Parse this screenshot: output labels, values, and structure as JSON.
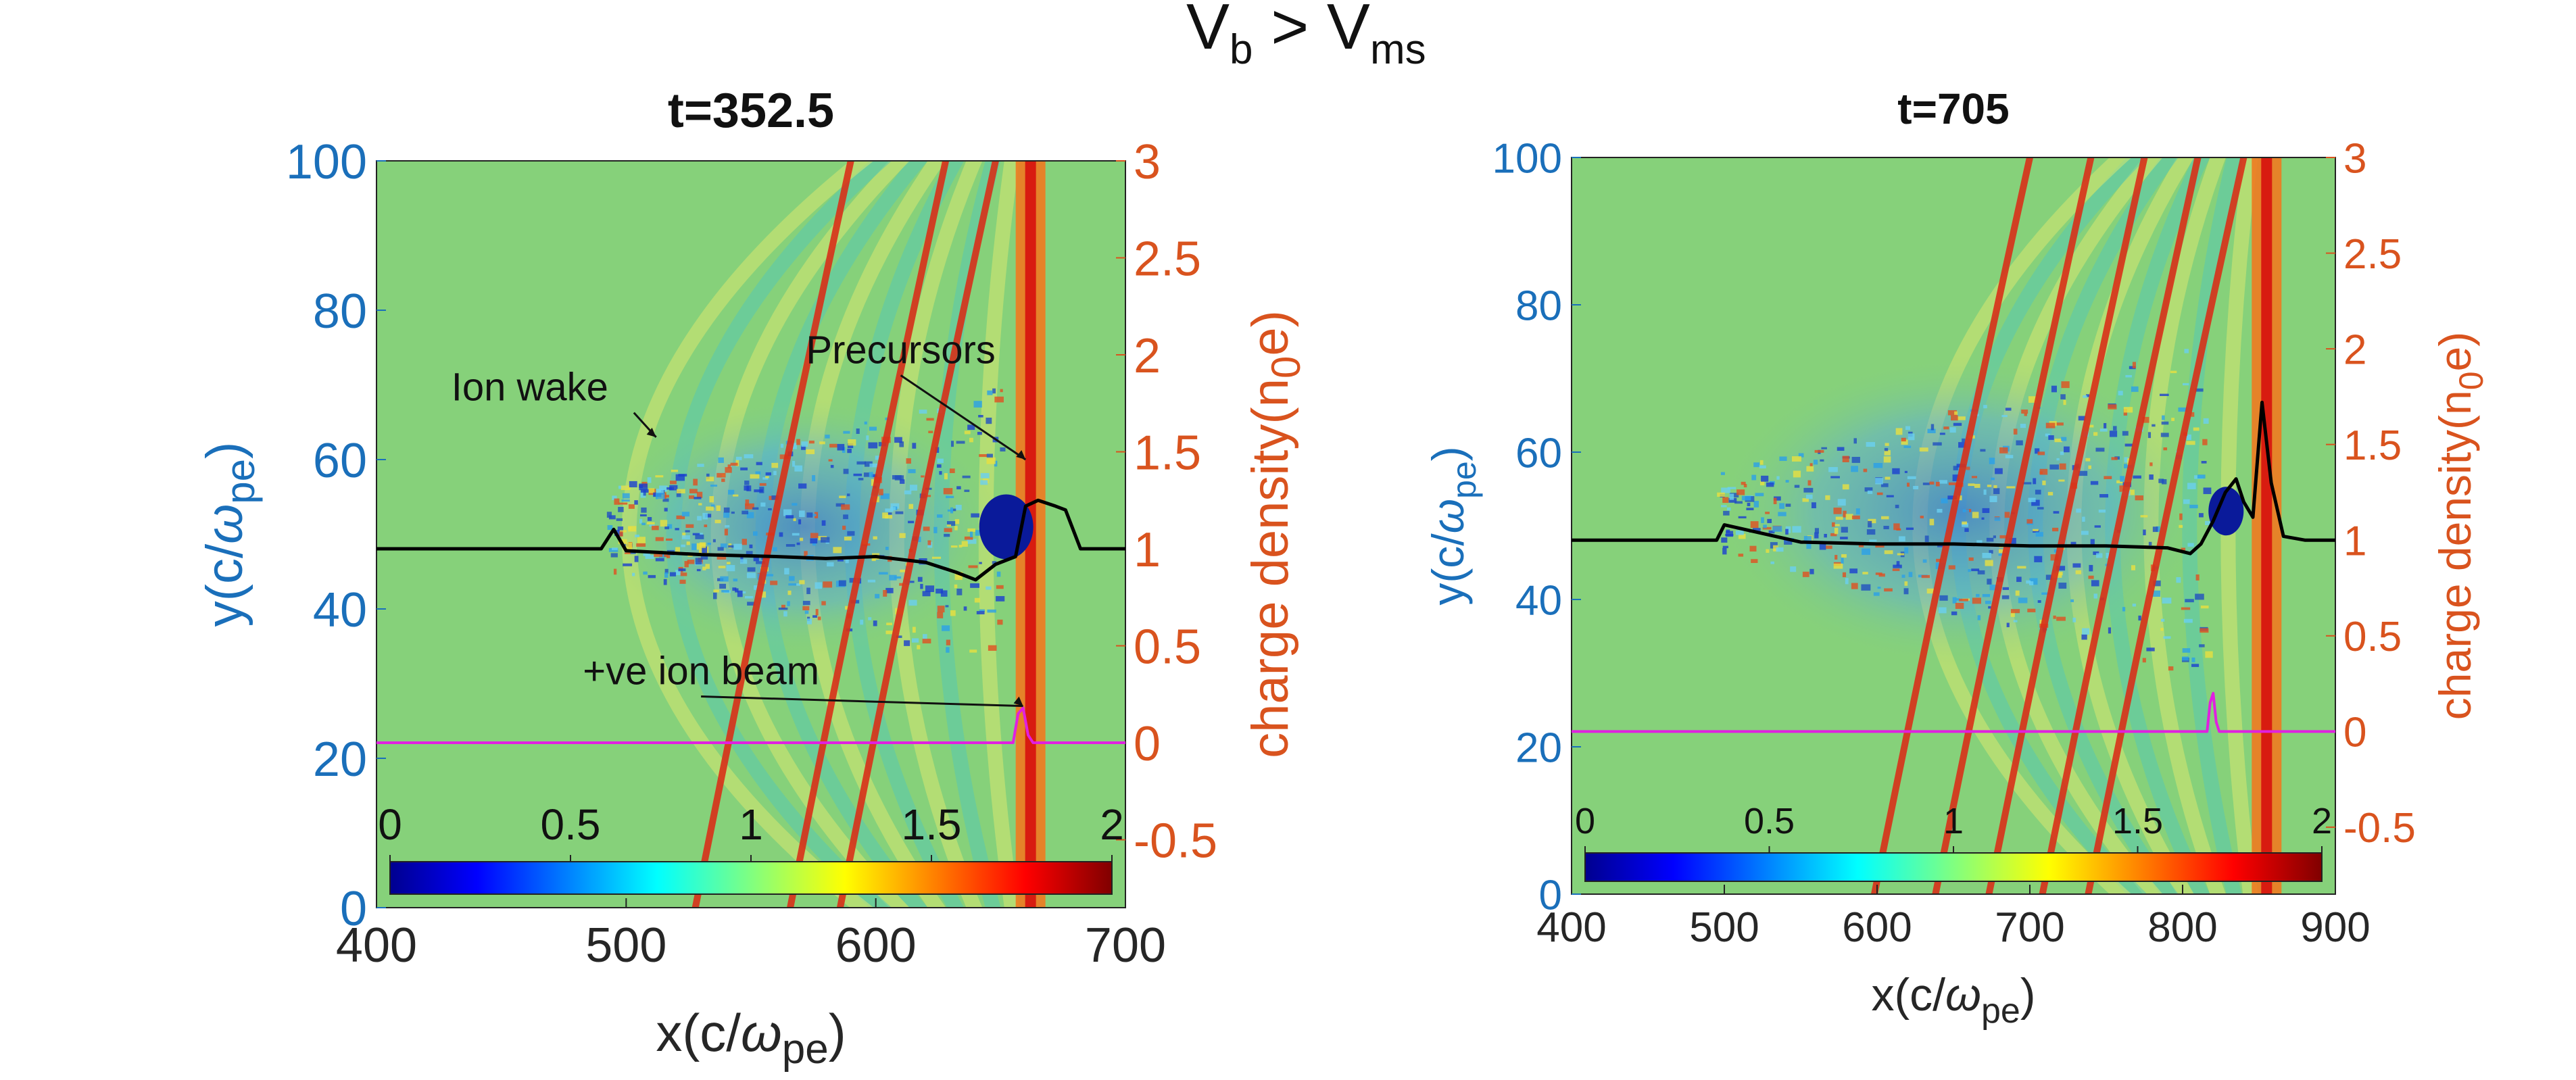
{
  "figure": {
    "suptitle_main": "V",
    "suptitle_sub1": "b",
    "suptitle_gt": " > V",
    "suptitle_sub2": "ms"
  },
  "colors": {
    "left_axis": "#1a6fba",
    "right_axis": "#d9531e",
    "profile_line": "#000000",
    "beam_line": "#e020e0",
    "background_field": "#86d17a"
  },
  "chart_data": [
    {
      "type": "heatmap",
      "title": "t=352.5",
      "xlabel": "x(c/ωpe)",
      "xlabel_parts": {
        "main": "x(c/",
        "omega": "ω",
        "sub": "pe",
        "close": ")"
      },
      "ylabel_left_parts": {
        "main": "y(c/",
        "omega": "ω",
        "sub": "pe",
        "close": ")"
      },
      "ylabel_right_parts": {
        "main": "charge density(n",
        "sub": "0",
        "close": "e)"
      },
      "xlim": [
        400,
        700
      ],
      "ylim_left": [
        0,
        100
      ],
      "ylim_right": [
        -0.85,
        3
      ],
      "xticks": [
        400,
        500,
        600,
        700
      ],
      "xtick_labels": [
        "400",
        "500",
        "600",
        "700"
      ],
      "yticks_left": [
        0,
        20,
        40,
        60,
        80,
        100
      ],
      "ytick_labels_left": [
        "0",
        "20",
        "40",
        "60",
        "80",
        "100"
      ],
      "yticks_right": [
        -0.5,
        0,
        0.5,
        1,
        1.5,
        2,
        2.5,
        3
      ],
      "ytick_labels_right": [
        "-0.5",
        "0",
        "0.5",
        "1",
        "1.5",
        "2",
        "2.5",
        "3"
      ],
      "colorbar": {
        "range": [
          0,
          2
        ],
        "ticks": [
          0,
          0.5,
          1,
          1.5,
          2
        ],
        "tick_labels": [
          "0",
          "0.5",
          "1",
          "1.5",
          "2"
        ],
        "colormap": "jet"
      },
      "shock_front_x": 662,
      "precursor_x": [
        590,
        628,
        648
      ],
      "annotations": [
        {
          "text": "Ion wake",
          "data_x": 512,
          "data_y": 63
        },
        {
          "text": "Precursors",
          "data_x": 660,
          "data_y": 60
        },
        {
          "text": "+ve ion beam",
          "data_x": 659,
          "data_y": 27
        }
      ],
      "series": [
        {
          "name": "charge density profile",
          "axis": "right",
          "x": [
            400,
            450,
            490,
            495,
            500,
            530,
            560,
            580,
            600,
            620,
            632,
            640,
            648,
            656,
            660,
            665,
            672,
            676,
            682,
            690,
            700
          ],
          "values": [
            1.0,
            1.0,
            1.0,
            1.1,
            0.99,
            0.97,
            0.96,
            0.95,
            0.96,
            0.93,
            0.88,
            0.84,
            0.92,
            0.96,
            1.22,
            1.25,
            1.22,
            1.2,
            1.0,
            1.0,
            1.0
          ]
        },
        {
          "name": "ion beam density",
          "axis": "right",
          "x": [
            400,
            655,
            657,
            659,
            661,
            663,
            700
          ],
          "values": [
            0,
            0,
            0.15,
            0.18,
            0.04,
            0,
            0
          ]
        }
      ]
    },
    {
      "type": "heatmap",
      "title": "t=705",
      "xlabel": "x(c/ωpe)",
      "xlabel_parts": {
        "main": "x(c/",
        "omega": "ω",
        "sub": "pe",
        "close": ")"
      },
      "ylabel_left_parts": {
        "main": "y(c/",
        "omega": "ω",
        "sub": "pe",
        "close": ")"
      },
      "ylabel_right_parts": {
        "main": "charge density(n",
        "sub": "0",
        "close": "e)"
      },
      "xlim": [
        400,
        900
      ],
      "ylim_left": [
        0,
        100
      ],
      "ylim_right": [
        -0.85,
        3
      ],
      "xticks": [
        400,
        500,
        600,
        700,
        800,
        900
      ],
      "xtick_labels": [
        "400",
        "500",
        "600",
        "700",
        "800",
        "900"
      ],
      "yticks_left": [
        0,
        20,
        40,
        60,
        80,
        100
      ],
      "ytick_labels_left": [
        "0",
        "20",
        "40",
        "60",
        "80",
        "100"
      ],
      "yticks_right": [
        -0.5,
        0,
        0.5,
        1,
        1.5,
        2,
        2.5,
        3
      ],
      "ytick_labels_right": [
        "-0.5",
        "0",
        "0.5",
        "1",
        "1.5",
        "2",
        "2.5",
        "3"
      ],
      "colorbar": {
        "range": [
          0,
          2
        ],
        "ticks": [
          0,
          0.5,
          1,
          1.5,
          2
        ],
        "tick_labels": [
          "0",
          "0.5",
          "1",
          "1.5",
          "2"
        ],
        "colormap": "jet"
      },
      "shock_front_x": 855,
      "precursor_x": [
        700,
        740,
        775,
        810,
        840
      ],
      "annotations": [],
      "series": [
        {
          "name": "charge density profile",
          "axis": "right",
          "x": [
            400,
            480,
            495,
            500,
            550,
            600,
            650,
            700,
            750,
            790,
            805,
            812,
            820,
            828,
            835,
            840,
            846,
            852,
            858,
            866,
            880,
            900
          ],
          "values": [
            1.0,
            1.0,
            1.0,
            1.08,
            0.99,
            0.98,
            0.98,
            0.97,
            0.97,
            0.96,
            0.93,
            0.98,
            1.1,
            1.25,
            1.32,
            1.2,
            1.12,
            1.72,
            1.3,
            1.02,
            1.0,
            1.0
          ]
        },
        {
          "name": "ion beam density",
          "axis": "right",
          "x": [
            400,
            816,
            818,
            820,
            822,
            824,
            900
          ],
          "values": [
            0,
            0,
            0.15,
            0.2,
            0.05,
            0,
            0
          ]
        }
      ]
    }
  ]
}
